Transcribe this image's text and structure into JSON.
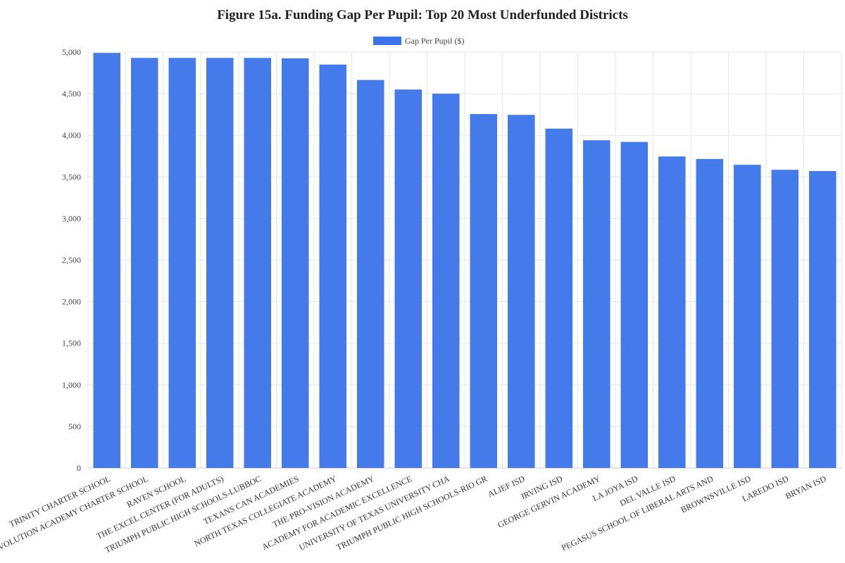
{
  "chart_data": {
    "type": "bar",
    "title": "Figure 15a. Funding Gap Per Pupil: Top 20 Most Underfunded Districts",
    "xlabel": "",
    "ylabel": "",
    "ylim": [
      0,
      5000
    ],
    "yticks": [
      0,
      500,
      1000,
      1500,
      2000,
      2500,
      3000,
      3500,
      4000,
      4500,
      5000
    ],
    "ytick_labels": [
      "0",
      "500",
      "1,000",
      "1,500",
      "2,000",
      "2,500",
      "3,000",
      "3,500",
      "4,000",
      "4,500",
      "5,000"
    ],
    "grid": true,
    "legend_position": "top-center",
    "bar_color": "#3b73ea",
    "categories": [
      "TRINITY CHARTER SCHOOL",
      "EVOLUTION ACADEMY CHARTER SCHOOL",
      "RAVEN SCHOOL",
      "THE EXCEL CENTER (FOR ADULTS)",
      "TRIUMPH PUBLIC HIGH SCHOOLS-LUBBOC",
      "TEXANS CAN ACADEMIES",
      "NORTH TEXAS COLLEGIATE ACADEMY",
      "THE PRO-VISION ACADEMY",
      "ACADEMY FOR ACADEMIC EXCELLENCE",
      "UNIVERSITY OF TEXAS UNIVERSITY CHA",
      "TRIUMPH PUBLIC HIGH SCHOOLS-RIO GR",
      "ALIEF ISD",
      "IRVING ISD",
      "GEORGE GERVIN ACADEMY",
      "LA JOYA ISD",
      "DEL VALLE ISD",
      "PEGASUS SCHOOL OF LIBERAL ARTS AND",
      "BROWNSVILLE ISD",
      "LAREDO ISD",
      "BRYAN ISD"
    ],
    "series": [
      {
        "name": "Gap Per Pupil ($)",
        "values": [
          4990,
          4930,
          4930,
          4930,
          4930,
          4925,
          4850,
          4665,
          4550,
          4500,
          4255,
          4245,
          4080,
          3940,
          3920,
          3745,
          3715,
          3645,
          3585,
          3570
        ]
      }
    ]
  }
}
